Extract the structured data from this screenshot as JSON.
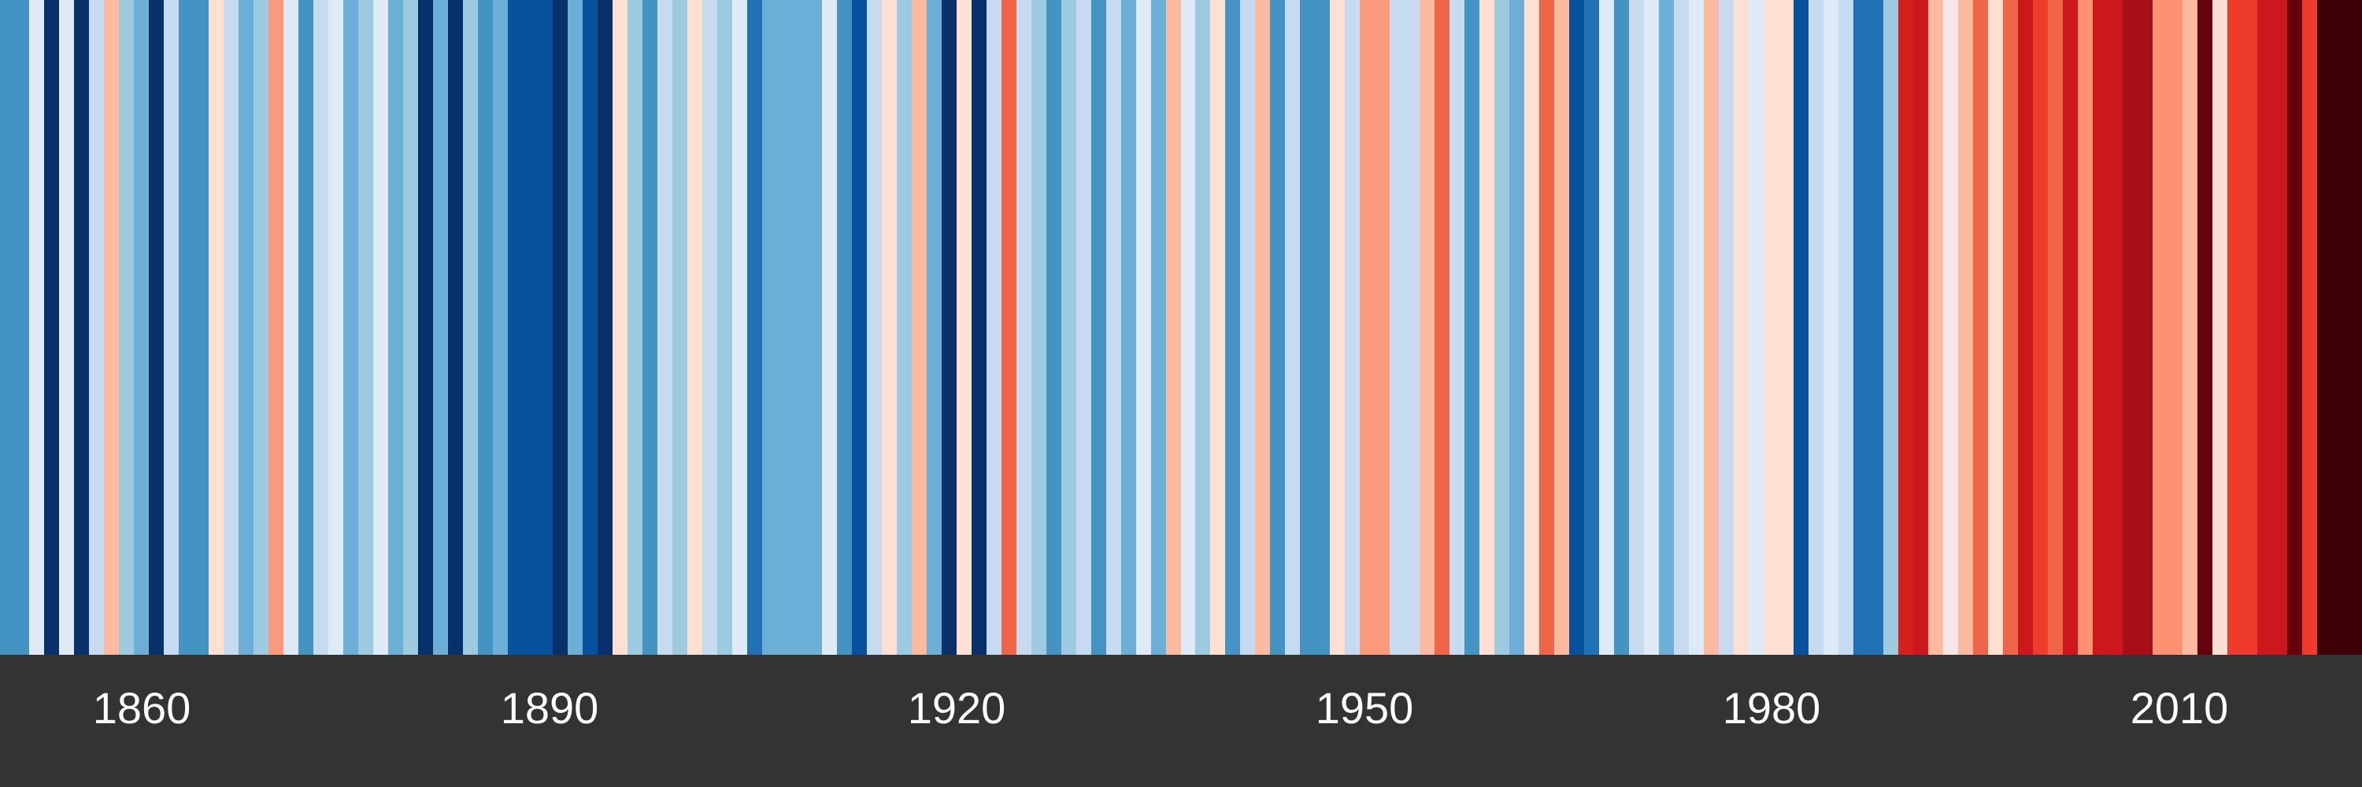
{
  "chart_data": {
    "type": "heatmap",
    "title": "",
    "xlabel": "",
    "ylabel": "",
    "x_range": [
      1850,
      2023
    ],
    "tick_labels": [
      "1860",
      "1890",
      "1920",
      "1950",
      "1980",
      "2010"
    ],
    "colors": {
      "background_axis": "#333333",
      "tick_text": "#ffffff"
    },
    "stripe_colors": [
      "#4393c3",
      "#4393c3",
      "#deebf7",
      "#08306b",
      "#deebf7",
      "#08306b",
      "#c6dbef",
      "#fcbba1",
      "#9ecae1",
      "#6baed6",
      "#08306b",
      "#c6dbef",
      "#4393c3",
      "#4393c3",
      "#fee0d2",
      "#c6dbef",
      "#6baed6",
      "#9ecae1",
      "#fb9a7a",
      "#deebf7",
      "#4393c3",
      "#c6dbef",
      "#deebf7",
      "#6baed6",
      "#9ecae1",
      "#deebf7",
      "#6baed6",
      "#9ecae1",
      "#08306b",
      "#6baed6",
      "#08306b",
      "#9ecae1",
      "#4393c3",
      "#6baed6",
      "#08519c",
      "#08519c",
      "#08519c",
      "#08306b",
      "#6baed6",
      "#08519c",
      "#08306b",
      "#fee0d2",
      "#9ecae1",
      "#4393c3",
      "#c6dbef",
      "#9ecae1",
      "#fee0d2",
      "#c6dbef",
      "#9ecae1",
      "#deebf7",
      "#2171b5",
      "#6baed6",
      "#6baed6",
      "#6baed6",
      "#6baed6",
      "#deebf7",
      "#4393c3",
      "#08519c",
      "#c6dbef",
      "#fee0d2",
      "#9ecae1",
      "#fcbba1",
      "#6baed6",
      "#08306b",
      "#fee0d2",
      "#08306b",
      "#c6dbef",
      "#ef6548",
      "#c6dbef",
      "#9ecae1",
      "#4393c3",
      "#9ecae1",
      "#c6dbef",
      "#4393c3",
      "#c6dbef",
      "#6baed6",
      "#deebf7",
      "#6baed6",
      "#fcbba1",
      "#deebf7",
      "#9ecae1",
      "#fee0d2",
      "#4393c3",
      "#c6dbef",
      "#fcbba1",
      "#4393c3",
      "#c6dbef",
      "#4393c3",
      "#4393c3",
      "#fee0d2",
      "#c6dbef",
      "#fb9a7a",
      "#fb9a7a",
      "#c6dbef",
      "#c6dbef",
      "#fcbba1",
      "#ef6548",
      "#c6dbef",
      "#4393c3",
      "#fee0d2",
      "#9ecae1",
      "#6baed6",
      "#fee0d2",
      "#ef6548",
      "#fcbba1",
      "#08519c",
      "#2171b5",
      "#deebf7",
      "#4393c3",
      "#c6dbef",
      "#deebf7",
      "#6baed6",
      "#c6dbef",
      "#deebf7",
      "#fcbba1",
      "#c6dbef",
      "#fee0d2",
      "#deebf7",
      "#fee0d2",
      "#fee0d2",
      "#08519c",
      "#c6dbef",
      "#deebf7",
      "#c6dbef",
      "#2171b5",
      "#2171b5",
      "#9ecae1",
      "#d7201c",
      "#cb181d",
      "#fcbba1",
      "#f7e6e6",
      "#fcbba1",
      "#ef6548",
      "#fee0d2",
      "#ef6548",
      "#cb181d",
      "#ef3b2c",
      "#ef6548",
      "#cb181d",
      "#fc9272",
      "#cb181d",
      "#cb181d",
      "#a50f15",
      "#a50f15",
      "#fc9272",
      "#fc9272",
      "#fcbba1",
      "#67000d",
      "#fee0d2",
      "#ef3b2c",
      "#ef3b2c",
      "#cb181d",
      "#cb181d",
      "#67000d",
      "#ef3b2c",
      "#3d0006",
      "#3d0006",
      "#3d0006"
    ]
  }
}
